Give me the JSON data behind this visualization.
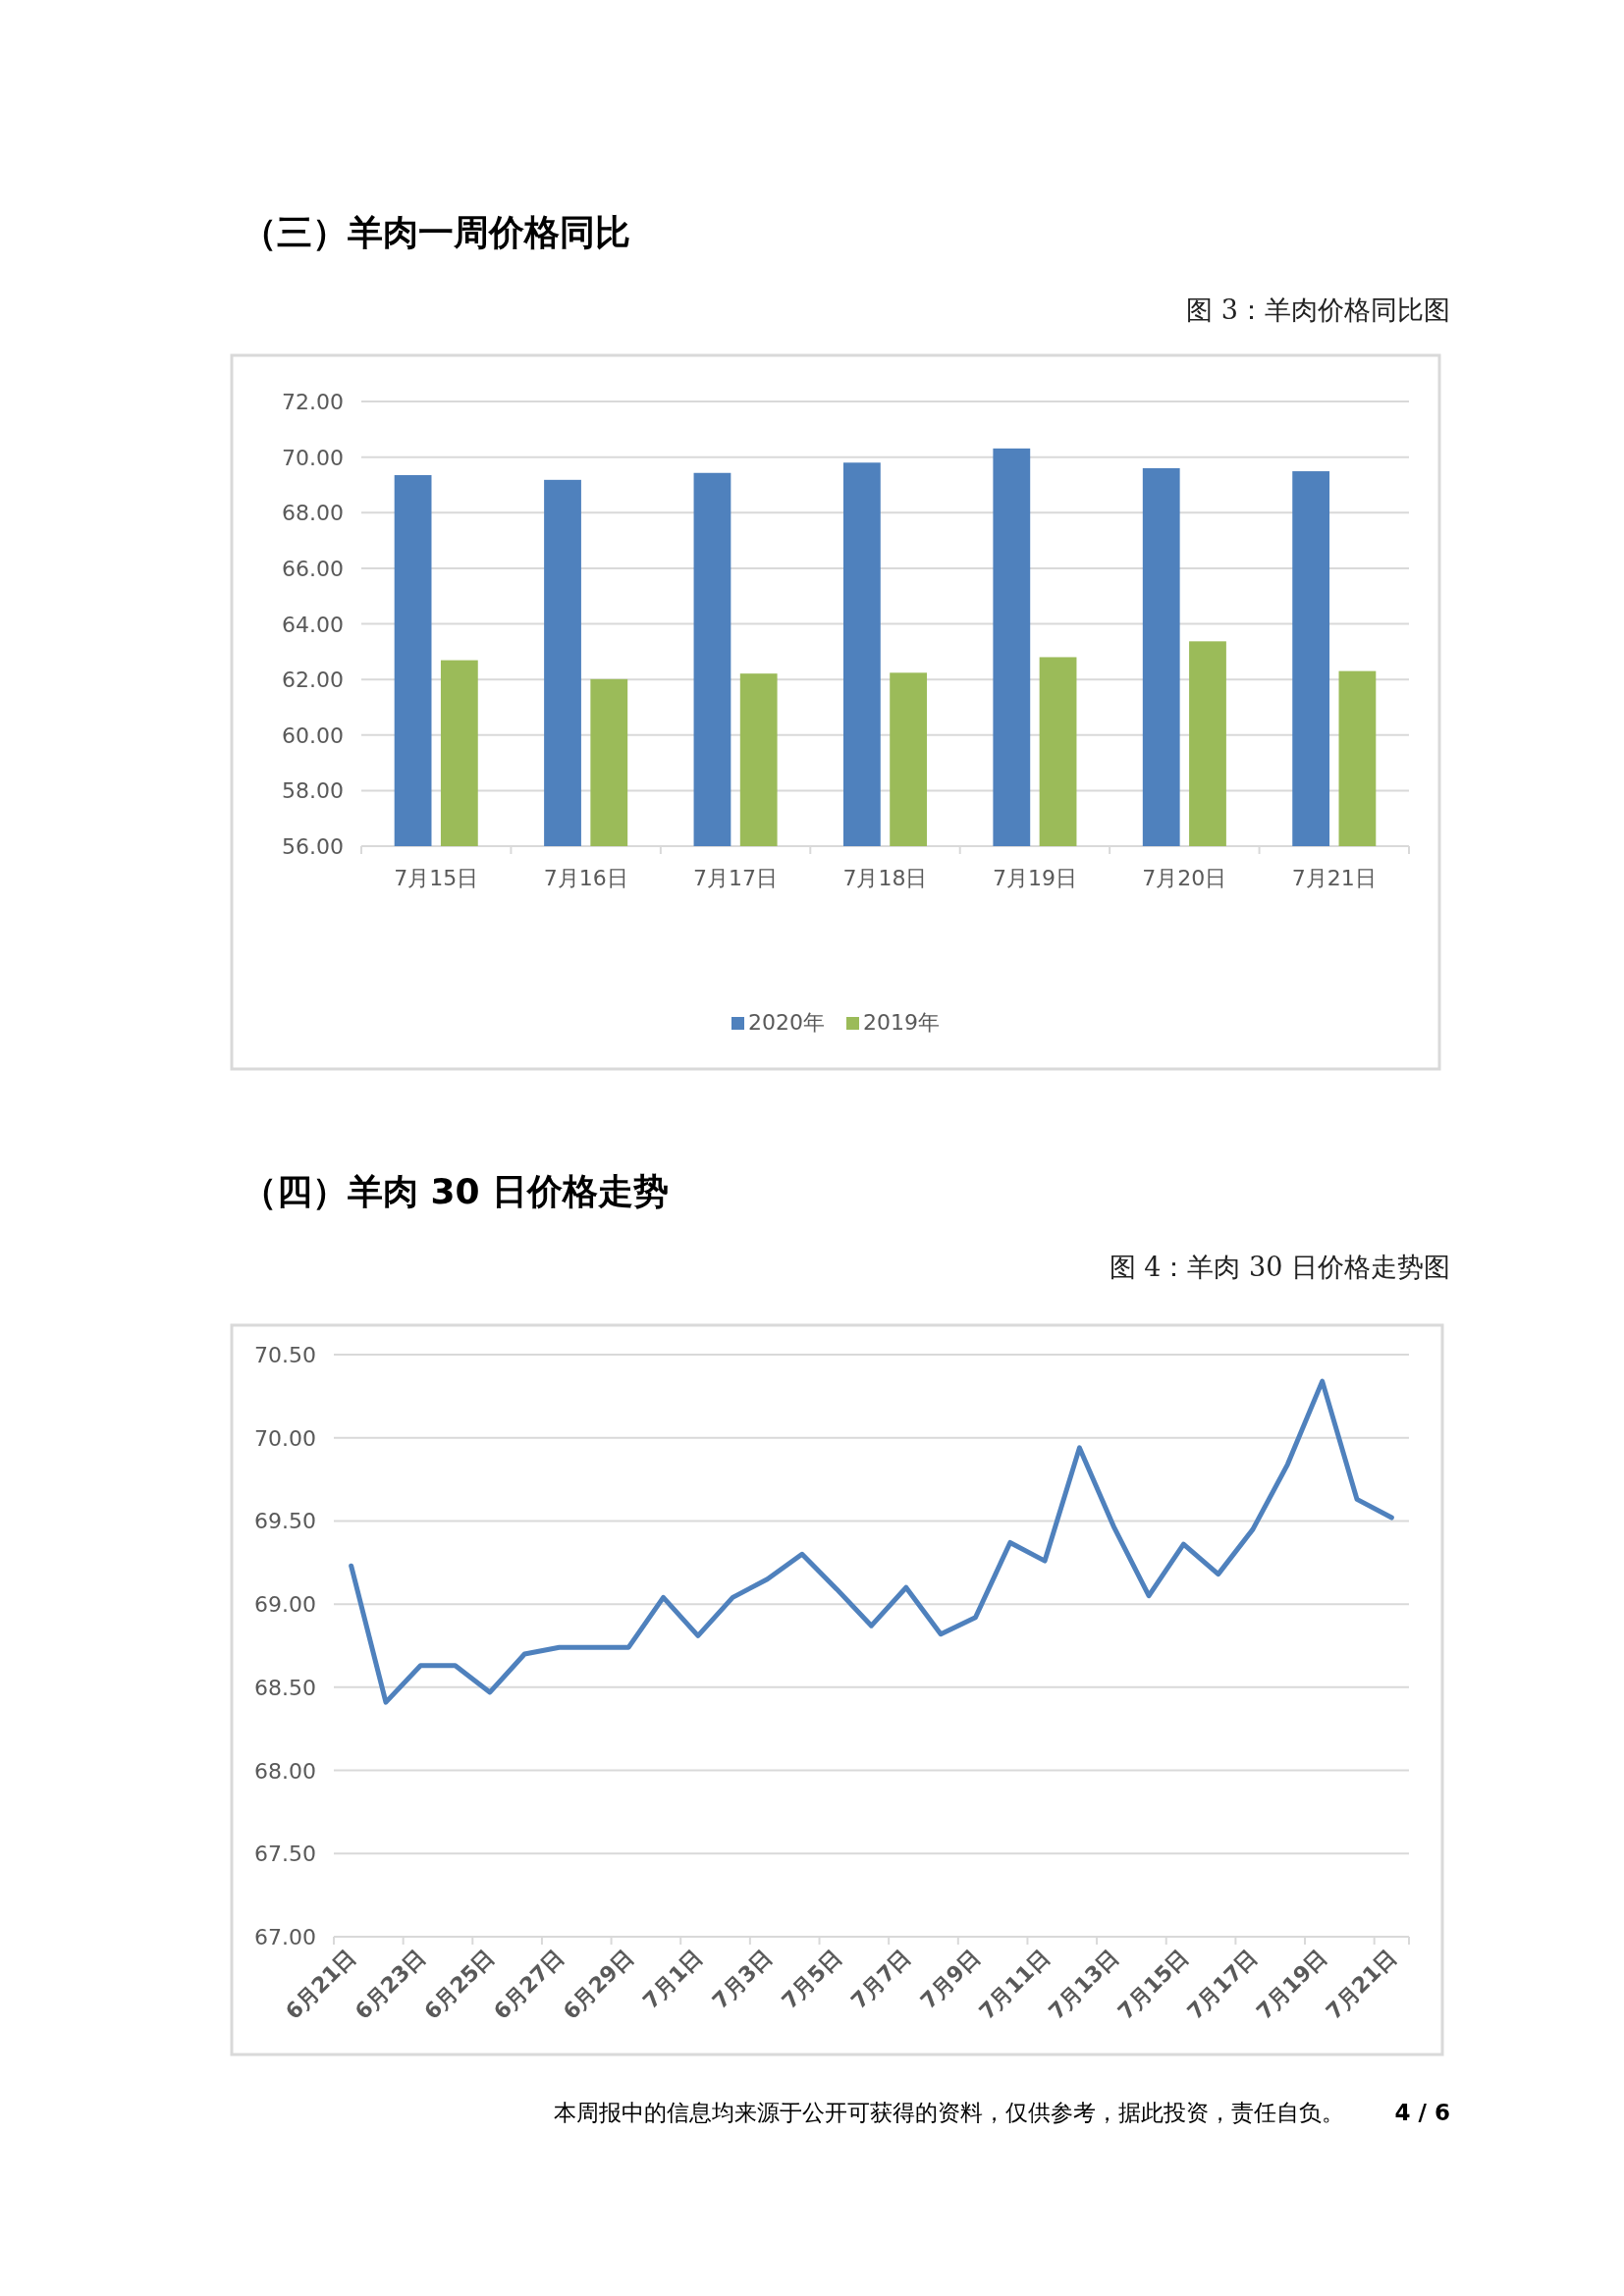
{
  "chart_data": [
    {
      "type": "bar",
      "title": "（三）羊肉一周价格同比",
      "subtitle": "图 3：羊肉价格同比图",
      "categories": [
        "7月15日",
        "7月16日",
        "7月17日",
        "7月18日",
        "7月19日",
        "7月20日",
        "7月21日"
      ],
      "series": [
        {
          "name": "2020年",
          "color": "#4f81bd",
          "values": [
            69.35,
            69.18,
            69.43,
            69.8,
            70.31,
            69.6,
            69.49
          ]
        },
        {
          "name": "2019年",
          "color": "#9bbb59",
          "values": [
            62.69,
            62.01,
            62.21,
            62.24,
            62.8,
            63.37,
            62.3
          ]
        }
      ],
      "ylim": [
        56,
        72
      ],
      "yticks": [
        {
          "value": 56,
          "label": "56.00"
        },
        {
          "value": 58,
          "label": "58.00"
        },
        {
          "value": 60,
          "label": "60.00"
        },
        {
          "value": 62,
          "label": "62.00"
        },
        {
          "value": 64,
          "label": "64.00"
        },
        {
          "value": 66,
          "label": "66.00"
        },
        {
          "value": 68,
          "label": "68.00"
        },
        {
          "value": 70,
          "label": "70.00"
        },
        {
          "value": 72,
          "label": "72.00"
        }
      ],
      "grid": "y",
      "legend": "bottom"
    },
    {
      "type": "line",
      "title": "（四）羊肉 30 日价格走势",
      "subtitle": "图 4：羊肉 30 日价格走势图",
      "categories": [
        "6月21日",
        null,
        "6月23日",
        null,
        "6月25日",
        null,
        "6月27日",
        null,
        "6月29日",
        null,
        "7月1日",
        null,
        "7月3日",
        null,
        "7月5日",
        null,
        "7月7日",
        null,
        "7月9日",
        null,
        "7月11日",
        null,
        "7月13日",
        null,
        "7月15日",
        null,
        "7月17日",
        null,
        "7月19日",
        null,
        "7月21日"
      ],
      "series": [
        {
          "color": "#4f81bd",
          "values": [
            69.23,
            68.41,
            68.63,
            68.63,
            68.47,
            68.7,
            68.74,
            68.74,
            68.74,
            69.04,
            68.81,
            69.04,
            69.15,
            69.3,
            69.09,
            68.87,
            69.1,
            68.82,
            68.92,
            69.37,
            69.26,
            69.94,
            69.46,
            69.05,
            69.36,
            69.18,
            69.45,
            69.84,
            70.34,
            69.63,
            69.52
          ]
        }
      ],
      "ylim": [
        67,
        70.5
      ],
      "yticks": [
        {
          "value": 67,
          "label": "67.00"
        },
        {
          "value": 67.5,
          "label": "67.50"
        },
        {
          "value": 68,
          "label": "68.00"
        },
        {
          "value": 68.5,
          "label": "68.50"
        },
        {
          "value": 69,
          "label": "69.00"
        },
        {
          "value": 69.5,
          "label": "69.50"
        },
        {
          "value": 70,
          "label": "70.00"
        },
        {
          "value": 70.5,
          "label": "70.50"
        }
      ],
      "grid": "y",
      "line_style": "solid",
      "marker": "none",
      "annotations": [
        "本周报中的信息均来源于公开可获得的资料，仅供参考，据此投资，责任自负。",
        "4 / 6"
      ]
    }
  ]
}
